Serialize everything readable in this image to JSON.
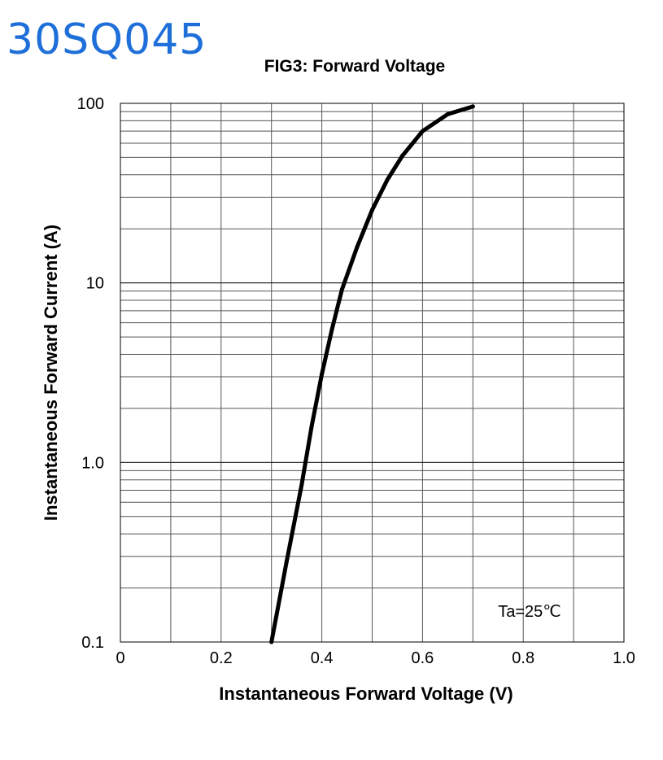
{
  "handwritten_label": "30SQ045",
  "chart_data": {
    "type": "line",
    "title": "FIG3: Forward Voltage",
    "xlabel": "Instantaneous Forward Voltage (V)",
    "ylabel": "Instantaneous Forward Current (A)",
    "xscale": "linear",
    "yscale": "log",
    "xlim": [
      0,
      1.0
    ],
    "ylim": [
      0.1,
      100
    ],
    "x_ticks": [
      0,
      0.2,
      0.4,
      0.6,
      0.8,
      1.0
    ],
    "x_tick_labels": [
      "0",
      "0.2",
      "0.4",
      "0.6",
      "0.8",
      "1.0"
    ],
    "y_ticks": [
      0.1,
      1,
      10,
      100
    ],
    "y_tick_labels": [
      "0.1",
      "1.0",
      "10",
      "100"
    ],
    "grid": true,
    "annotation": "Ta=25℃",
    "series": [
      {
        "x": [
          0.3,
          0.33,
          0.36,
          0.38,
          0.4,
          0.42,
          0.44,
          0.47,
          0.5,
          0.53,
          0.56,
          0.6,
          0.65,
          0.7
        ],
        "y": [
          0.1,
          0.28,
          0.75,
          1.6,
          3.1,
          5.5,
          9.2,
          15.8,
          25.5,
          37.5,
          51,
          70,
          87,
          96
        ]
      }
    ],
    "color": "#000000"
  }
}
